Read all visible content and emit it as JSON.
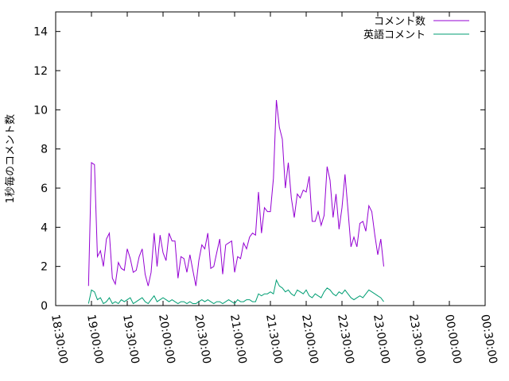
{
  "chart_data": {
    "type": "line",
    "ylabel": "1秒毎のコメント数",
    "xlabel": "",
    "ylim": [
      0,
      15
    ],
    "xlim": [
      "18:30:00",
      "00:30:00"
    ],
    "yticks": [
      0,
      2,
      4,
      6,
      8,
      10,
      12,
      14
    ],
    "xticks": [
      "18:30:00",
      "19:00:00",
      "19:30:00",
      "20:00:00",
      "20:30:00",
      "21:00:00",
      "21:30:00",
      "22:00:00",
      "22:30:00",
      "23:00:00",
      "23:30:00",
      "00:00:00",
      "00:30:00"
    ],
    "grid": false,
    "legend_position": "top-right",
    "sample_interval_minutes": 2.5,
    "series_start": "18:57:30",
    "series": [
      {
        "name": "コメント数",
        "color": "#9400d3",
        "values": [
          1.0,
          7.3,
          7.2,
          2.5,
          2.8,
          2.0,
          3.4,
          3.7,
          1.4,
          1.1,
          2.2,
          1.9,
          1.8,
          2.9,
          2.4,
          1.7,
          1.8,
          2.5,
          2.9,
          1.6,
          1.0,
          1.7,
          3.7,
          2.0,
          3.6,
          2.7,
          2.3,
          3.7,
          3.3,
          3.3,
          1.4,
          2.5,
          2.4,
          1.7,
          2.6,
          1.8,
          1.0,
          2.3,
          3.1,
          2.9,
          3.7,
          1.9,
          2.0,
          2.7,
          3.4,
          1.6,
          3.1,
          3.2,
          3.3,
          1.7,
          2.5,
          2.4,
          3.2,
          2.9,
          3.5,
          3.7,
          3.6,
          5.8,
          3.7,
          5.0,
          4.8,
          4.8,
          6.5,
          10.5,
          9.1,
          8.5,
          6.0,
          7.3,
          5.5,
          4.5,
          5.7,
          5.5,
          5.9,
          5.8,
          6.6,
          4.3,
          4.3,
          4.8,
          4.1,
          4.6,
          7.1,
          6.4,
          4.5,
          5.7,
          3.9,
          5.0,
          6.7,
          4.9,
          3.0,
          3.5,
          3.0,
          4.2,
          4.3,
          3.8,
          5.1,
          4.8,
          3.6,
          2.6,
          3.4,
          2.0
        ]
      },
      {
        "name": "英語コメント",
        "color": "#009e73",
        "values": [
          0.1,
          0.8,
          0.7,
          0.3,
          0.4,
          0.1,
          0.2,
          0.4,
          0.1,
          0.2,
          0.1,
          0.3,
          0.2,
          0.3,
          0.4,
          0.1,
          0.2,
          0.3,
          0.4,
          0.2,
          0.1,
          0.3,
          0.5,
          0.2,
          0.3,
          0.4,
          0.3,
          0.2,
          0.3,
          0.2,
          0.1,
          0.2,
          0.2,
          0.1,
          0.2,
          0.1,
          0.1,
          0.2,
          0.3,
          0.2,
          0.3,
          0.2,
          0.1,
          0.2,
          0.2,
          0.1,
          0.2,
          0.3,
          0.2,
          0.1,
          0.3,
          0.2,
          0.2,
          0.3,
          0.3,
          0.2,
          0.2,
          0.6,
          0.5,
          0.6,
          0.6,
          0.7,
          0.6,
          1.3,
          1.0,
          0.9,
          0.7,
          0.8,
          0.6,
          0.5,
          0.8,
          0.7,
          0.6,
          0.8,
          0.5,
          0.4,
          0.6,
          0.5,
          0.4,
          0.7,
          0.9,
          0.8,
          0.6,
          0.5,
          0.7,
          0.6,
          0.8,
          0.6,
          0.4,
          0.3,
          0.4,
          0.5,
          0.4,
          0.6,
          0.8,
          0.7,
          0.6,
          0.5,
          0.4,
          0.2
        ]
      }
    ]
  }
}
